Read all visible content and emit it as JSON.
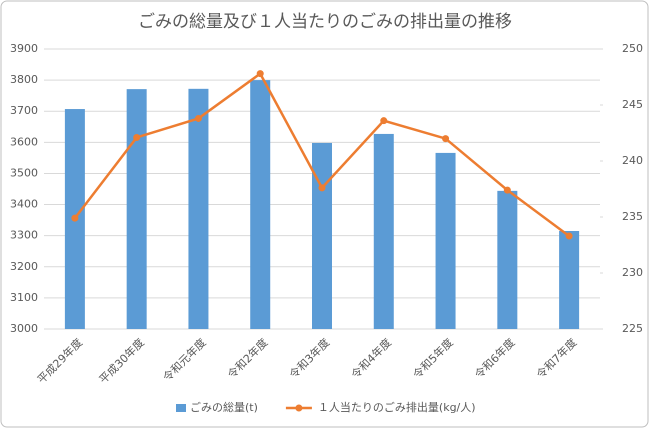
{
  "chart_data": {
    "type": "bar_line",
    "title": "ごみの総量及び１人当たりのごみの排出量の推移",
    "categories": [
      "平成29年度",
      "平成30年度",
      "令和元年度",
      "令和2年度",
      "令和3年度",
      "令和4年度",
      "令和5年度",
      "令和6年度",
      "令和7年度"
    ],
    "series": [
      {
        "name": "ごみの総量(t)",
        "color": "#5b9bd5",
        "type": "bar",
        "values": [
          3707,
          3771,
          3772,
          3800,
          3598,
          3627,
          3566,
          3444,
          3315
        ]
      },
      {
        "name": "１人当たりのごみ排出量(kg/人)",
        "color": "#ed7d31",
        "type": "line",
        "axis": "y2",
        "values": [
          234.9,
          242.1,
          243.8,
          247.8,
          237.6,
          243.6,
          242.0,
          237.4,
          233.3
        ]
      }
    ],
    "ylim": [
      3000,
      3900
    ],
    "yticks": [
      3000,
      3100,
      3200,
      3300,
      3400,
      3500,
      3600,
      3700,
      3800,
      3900
    ],
    "y2lim": [
      225,
      250
    ],
    "y2ticks": [
      225,
      230,
      235,
      240,
      245,
      250
    ],
    "grid": true,
    "legend": "bottom"
  }
}
